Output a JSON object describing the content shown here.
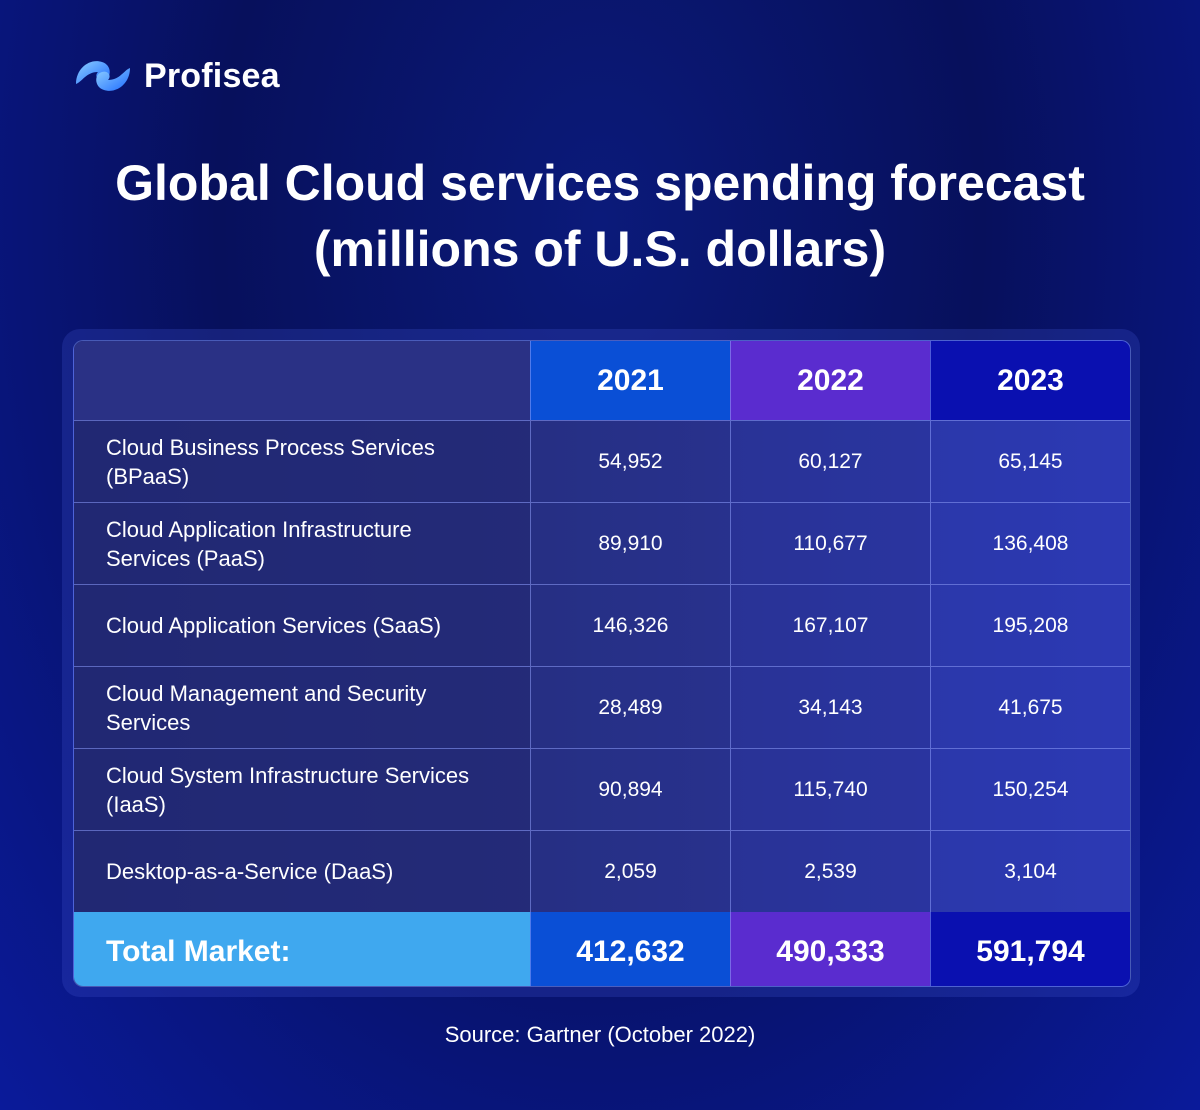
{
  "brand": {
    "name": "Profisea",
    "mark_colors": [
      "#5fb6ff",
      "#1e6bff"
    ]
  },
  "title": {
    "line1": "Global Cloud services spending forecast",
    "line2": "(millions of U.S. dollars)"
  },
  "source": "Source: Gartner (October 2022)",
  "colors": {
    "col_2021": "#0a4fd6",
    "col_2022": "#5a2ccf",
    "col_2023": "#0a10b0",
    "total_label": "#3fa8ef"
  },
  "chart_data": {
    "type": "table",
    "title": "Global Cloud services spending forecast (millions of U.S. dollars)",
    "columns": [
      "",
      "2021",
      "2022",
      "2023"
    ],
    "rows": [
      {
        "label": "Cloud Business Process Services (BPaaS)",
        "values": [
          "54,952",
          "60,127",
          "65,145"
        ]
      },
      {
        "label": "Cloud Application Infrastructure Services (PaaS)",
        "values": [
          "89,910",
          "110,677",
          "136,408"
        ]
      },
      {
        "label": "Cloud Application Services (SaaS)",
        "values": [
          "146,326",
          "167,107",
          "195,208"
        ]
      },
      {
        "label": "Cloud Management and Security Services",
        "values": [
          "28,489",
          "34,143",
          "41,675"
        ]
      },
      {
        "label": "Cloud System Infrastructure Services (IaaS)",
        "values": [
          "90,894",
          "115,740",
          "150,254"
        ]
      },
      {
        "label": "Desktop-as-a-Service (DaaS)",
        "values": [
          "2,059",
          "2,539",
          "3,104"
        ]
      }
    ],
    "total": {
      "label": "Total Market:",
      "values": [
        "412,632",
        "490,333",
        "591,794"
      ]
    }
  }
}
